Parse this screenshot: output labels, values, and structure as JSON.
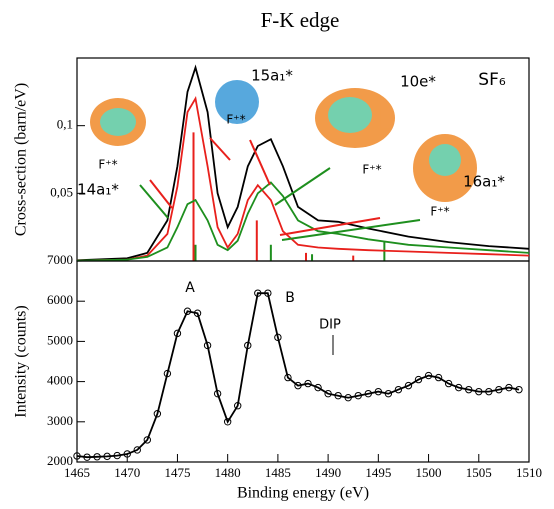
{
  "chart_data": [
    {
      "type": "line",
      "title": "F-K edge",
      "y_label": "Cross-section (barn/eV)",
      "xlim": [
        1465,
        1510
      ],
      "ylim": [
        0,
        0.15
      ],
      "yticks": [
        {
          "value": 0.05,
          "label": "0,05"
        },
        {
          "value": 0.1,
          "label": "0,1"
        }
      ],
      "x": [
        1465,
        1470,
        1472,
        1474,
        1475,
        1476,
        1476.8,
        1478,
        1479,
        1480,
        1481,
        1482,
        1483,
        1484.3,
        1485.5,
        1487,
        1489,
        1491,
        1494,
        1498,
        1502,
        1506,
        1510
      ],
      "series": [
        {
          "color": "#000000",
          "values": [
            0.0005,
            0.002,
            0.006,
            0.03,
            0.07,
            0.125,
            0.143,
            0.11,
            0.05,
            0.025,
            0.04,
            0.07,
            0.085,
            0.09,
            0.07,
            0.04,
            0.03,
            0.029,
            0.024,
            0.018,
            0.014,
            0.011,
            0.009
          ]
        },
        {
          "color": "#e8201c",
          "values": [
            0.0003,
            0.001,
            0.004,
            0.02,
            0.055,
            0.11,
            0.12,
            0.07,
            0.025,
            0.01,
            0.02,
            0.045,
            0.056,
            0.045,
            0.022,
            0.012,
            0.01,
            0.009,
            0.008,
            0.007,
            0.006,
            0.005,
            0.004
          ]
        },
        {
          "color": "#1e8f1e",
          "values": [
            0.0002,
            0.001,
            0.003,
            0.01,
            0.025,
            0.042,
            0.045,
            0.03,
            0.012,
            0.008,
            0.015,
            0.035,
            0.05,
            0.058,
            0.048,
            0.03,
            0.022,
            0.02,
            0.016,
            0.012,
            0.01,
            0.008,
            0.006
          ]
        }
      ],
      "sticks": [
        {
          "color": "#e8201c",
          "x": [
            1476.6,
            1482.9,
            1487.8,
            1492.5
          ],
          "values": [
            0.095,
            0.03,
            0.006,
            0.004
          ]
        },
        {
          "color": "#1e8f1e",
          "x": [
            1476.8,
            1484.3,
            1488.4,
            1495.6
          ],
          "values": [
            0.012,
            0.012,
            0.005,
            0.014
          ]
        }
      ],
      "annotations": [
        "SF₆",
        "15a₁*",
        "10e*",
        "14a₁*",
        "16a₁*",
        "F⁺*",
        "F⁺*",
        "F⁺*",
        "F⁺*"
      ]
    },
    {
      "type": "line",
      "markers": true,
      "y_label": "Intensity (counts)",
      "x_label": "Binding energy (eV)",
      "xlim": [
        1465,
        1510
      ],
      "ylim": [
        2000,
        7000
      ],
      "xticks": [
        1465,
        1470,
        1475,
        1480,
        1485,
        1490,
        1495,
        1500,
        1505,
        1510
      ],
      "yticks": [
        2000,
        3000,
        4000,
        5000,
        6000,
        7000
      ],
      "x": [
        1465,
        1466,
        1467,
        1468,
        1469,
        1470,
        1471,
        1472,
        1473,
        1474,
        1475,
        1476,
        1477,
        1478,
        1479,
        1480,
        1481,
        1482,
        1483,
        1484,
        1485,
        1486,
        1487,
        1488,
        1489,
        1490,
        1491,
        1492,
        1493,
        1494,
        1495,
        1496,
        1497,
        1498,
        1499,
        1500,
        1501,
        1502,
        1503,
        1504,
        1505,
        1506,
        1507,
        1508,
        1509
      ],
      "series": [
        {
          "color": "#000000",
          "values": [
            2150,
            2120,
            2130,
            2140,
            2160,
            2200,
            2300,
            2550,
            3200,
            4200,
            5200,
            5750,
            5700,
            4900,
            3700,
            3000,
            3400,
            4900,
            6200,
            6200,
            5100,
            4100,
            3900,
            3950,
            3850,
            3700,
            3650,
            3600,
            3650,
            3700,
            3750,
            3700,
            3800,
            3900,
            4050,
            4150,
            4100,
            3950,
            3850,
            3800,
            3750,
            3750,
            3800,
            3850,
            3800
          ]
        }
      ],
      "annotations": [
        "A",
        "B",
        "DIP"
      ]
    }
  ]
}
